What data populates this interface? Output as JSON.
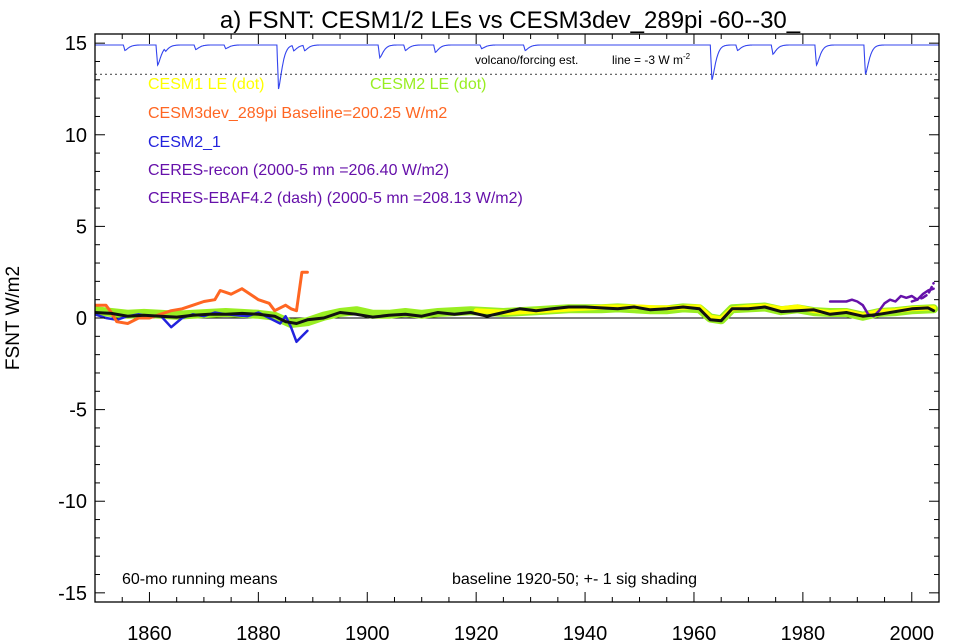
{
  "chart_data": {
    "type": "line",
    "title": "a) FSNT: CESM1/2 LEs vs CESM3dev_289pi -60--30_",
    "xlabel": "",
    "ylabel": "FSNT W/m2",
    "xlim": [
      1850,
      2005
    ],
    "ylim": [
      -15.5,
      15.5
    ],
    "xticks": [
      1860,
      1880,
      1900,
      1920,
      1940,
      1960,
      1980,
      2000
    ],
    "yticks": [
      -15,
      -10,
      -5,
      0,
      5,
      10,
      15
    ],
    "grid": false,
    "legend_position": "top-left",
    "annotations": {
      "volcano": "volcano/forcing est.",
      "line": "line = -3 W m",
      "line_exp": "-2",
      "running": "60-mo running means",
      "baseline": "baseline 1920-50; +- 1 sig shading"
    },
    "legend": [
      {
        "label": "CESM1 LE (dot)",
        "color": "#ffff00"
      },
      {
        "label": "CESM2 LE (dot)",
        "color": "#99ee22"
      },
      {
        "label": "CESM3dev_289pi Baseline=200.25 W/m2",
        "color": "#ff6622"
      },
      {
        "label": "CESM2_1",
        "color": "#2222dd"
      },
      {
        "label": "CERES-recon (2000-5 mn =206.40 W/m2)",
        "color": "#6611aa"
      },
      {
        "label": "CERES-EBAF4.2 (dash) (2000-5 mn =208.13 W/m2)",
        "color": "#6611aa"
      }
    ],
    "volcano_reference_y": 13.3,
    "volcano_series": {
      "color": "#3344ee",
      "base_y": 14.9,
      "events": [
        {
          "x": 1855.5,
          "depth": 0.3
        },
        {
          "x": 1861.5,
          "depth": 1.1
        },
        {
          "x": 1863,
          "depth": 0.2
        },
        {
          "x": 1868.5,
          "depth": 0.25
        },
        {
          "x": 1874,
          "depth": 0.2
        },
        {
          "x": 1883.7,
          "depth": 2.4
        },
        {
          "x": 1886.5,
          "depth": 0.3
        },
        {
          "x": 1888.5,
          "depth": 0.3
        },
        {
          "x": 1902.3,
          "depth": 0.7
        },
        {
          "x": 1907,
          "depth": 0.3
        },
        {
          "x": 1912.5,
          "depth": 0.4
        },
        {
          "x": 1921,
          "depth": 0.2
        },
        {
          "x": 1929,
          "depth": 0.3
        },
        {
          "x": 1963.3,
          "depth": 1.9
        },
        {
          "x": 1968,
          "depth": 0.3
        },
        {
          "x": 1974.5,
          "depth": 0.5
        },
        {
          "x": 1982.5,
          "depth": 1.1
        },
        {
          "x": 1991.5,
          "depth": 1.6
        }
      ]
    },
    "series": [
      {
        "name": "CESM2 LE (dot)",
        "color": "#99ee22",
        "width": 9,
        "x": [
          1850,
          1853,
          1856,
          1859,
          1862,
          1865,
          1868,
          1871,
          1874,
          1877,
          1880,
          1883,
          1886,
          1889,
          1892,
          1895,
          1898,
          1901,
          1904,
          1907,
          1910,
          1913,
          1916,
          1919,
          1922,
          1925,
          1928,
          1931,
          1934,
          1937,
          1940,
          1943,
          1946,
          1949,
          1952,
          1955,
          1958,
          1961,
          1963,
          1965,
          1967,
          1970,
          1973,
          1976,
          1979,
          1982,
          1985,
          1988,
          1991,
          1994,
          1997,
          2000,
          2004
        ],
        "y": [
          0.4,
          0.3,
          0.2,
          0.25,
          0.2,
          0.15,
          0.2,
          0.25,
          0.3,
          0.25,
          0.2,
          0.1,
          -0.3,
          -0.2,
          0.1,
          0.3,
          0.4,
          0.2,
          0.2,
          0.3,
          0.2,
          0.3,
          0.35,
          0.4,
          0.35,
          0.3,
          0.35,
          0.4,
          0.45,
          0.5,
          0.5,
          0.5,
          0.55,
          0.5,
          0.45,
          0.45,
          0.55,
          0.5,
          0.0,
          -0.1,
          0.5,
          0.55,
          0.6,
          0.4,
          0.5,
          0.35,
          0.3,
          0.3,
          0.1,
          0.3,
          0.35,
          0.45,
          0.5
        ]
      },
      {
        "name": "CESM1 LE (dot)",
        "color": "#ffff00",
        "width": 5,
        "x": [
          1920,
          1923,
          1926,
          1929,
          1932,
          1935,
          1938,
          1941,
          1944,
          1947,
          1950,
          1953,
          1956,
          1959,
          1961,
          1963,
          1965,
          1967,
          1970,
          1973,
          1976,
          1979,
          1982,
          1985,
          1988,
          1991,
          1994,
          1997,
          2000,
          2004
        ],
        "y": [
          0.4,
          0.35,
          0.3,
          0.35,
          0.4,
          0.45,
          0.5,
          0.55,
          0.6,
          0.6,
          0.6,
          0.55,
          0.55,
          0.6,
          0.6,
          0.05,
          -0.05,
          0.5,
          0.6,
          0.65,
          0.5,
          0.6,
          0.4,
          0.3,
          0.35,
          0.15,
          0.35,
          0.4,
          0.5,
          0.55
        ]
      },
      {
        "name": "CESM2_1",
        "color": "#2222dd",
        "width": 2.5,
        "x": [
          1850,
          1852,
          1854,
          1856,
          1858,
          1860,
          1862,
          1864,
          1866,
          1868,
          1870,
          1872,
          1874,
          1876,
          1878,
          1880,
          1882,
          1884,
          1885,
          1886,
          1887,
          1888,
          1889
        ],
        "y": [
          0.2,
          0.0,
          -0.1,
          0.1,
          0.2,
          0.1,
          0.15,
          -0.5,
          0.0,
          0.2,
          0.1,
          0.3,
          0.2,
          0.15,
          0.1,
          0.3,
          0.0,
          -0.3,
          0.1,
          -0.5,
          -1.3,
          -1.0,
          -0.7
        ]
      },
      {
        "name": "CESM3dev_289pi Baseline=200.25 W/m2",
        "color": "#ff6622",
        "width": 3,
        "x": [
          1850,
          1852,
          1853,
          1854,
          1856,
          1858,
          1860,
          1862,
          1864,
          1866,
          1868,
          1870,
          1872,
          1873,
          1874,
          1875,
          1877,
          1879,
          1880,
          1882,
          1883,
          1885,
          1886,
          1887,
          1888,
          1889
        ],
        "y": [
          0.7,
          0.7,
          0.3,
          -0.2,
          -0.3,
          0.0,
          0.0,
          0.2,
          0.4,
          0.5,
          0.7,
          0.9,
          1.0,
          1.5,
          1.4,
          1.3,
          1.6,
          1.2,
          1.0,
          0.8,
          0.4,
          0.7,
          0.5,
          0.4,
          2.5,
          2.5
        ]
      },
      {
        "name": "CERES-recon (2000-5 mn =206.40 W/m2)",
        "color": "#6611aa",
        "width": 2.5,
        "x": [
          1985,
          1986,
          1987,
          1988,
          1989,
          1990,
          1991,
          1992,
          1993,
          1994,
          1995,
          1996,
          1997,
          1998,
          1999,
          2000,
          2001,
          2002,
          2003,
          2004
        ],
        "y": [
          0.9,
          0.9,
          0.9,
          0.9,
          1.0,
          0.9,
          0.7,
          0.2,
          0.1,
          0.4,
          0.8,
          1.0,
          0.9,
          1.2,
          1.1,
          1.2,
          1.0,
          1.3,
          1.5,
          1.6
        ]
      },
      {
        "name": "CERES-EBAF4.2 (dash) (2000-5 mn =208.13 W/m2)",
        "color": "#6611aa",
        "width": 2.5,
        "dash": true,
        "x": [
          2000,
          2001,
          2002,
          2003,
          2004
        ],
        "y": [
          0.9,
          1.0,
          1.1,
          1.3,
          1.9
        ]
      },
      {
        "name": "ensemble mean",
        "color": "#111111",
        "width": 3,
        "x": [
          1850,
          1853,
          1856,
          1859,
          1862,
          1865,
          1868,
          1871,
          1874,
          1877,
          1880,
          1883,
          1885,
          1887,
          1889,
          1892,
          1895,
          1898,
          1901,
          1904,
          1907,
          1910,
          1913,
          1916,
          1919,
          1922,
          1925,
          1928,
          1931,
          1934,
          1937,
          1940,
          1943,
          1946,
          1949,
          1952,
          1955,
          1958,
          1961,
          1963,
          1965,
          1967,
          1970,
          1973,
          1976,
          1979,
          1982,
          1985,
          1988,
          1991,
          1994,
          1997,
          2000,
          2003,
          2004
        ],
        "y": [
          0.3,
          0.25,
          0.1,
          0.15,
          0.1,
          0.05,
          0.15,
          0.2,
          0.2,
          0.25,
          0.2,
          0.1,
          -0.2,
          -0.3,
          -0.1,
          0.0,
          0.3,
          0.2,
          0.05,
          0.15,
          0.2,
          0.1,
          0.3,
          0.2,
          0.3,
          0.1,
          0.3,
          0.5,
          0.4,
          0.5,
          0.6,
          0.6,
          0.55,
          0.5,
          0.6,
          0.45,
          0.5,
          0.6,
          0.5,
          -0.1,
          -0.15,
          0.5,
          0.5,
          0.6,
          0.35,
          0.4,
          0.45,
          0.2,
          0.3,
          0.1,
          0.2,
          0.35,
          0.5,
          0.55,
          0.4
        ]
      }
    ]
  }
}
